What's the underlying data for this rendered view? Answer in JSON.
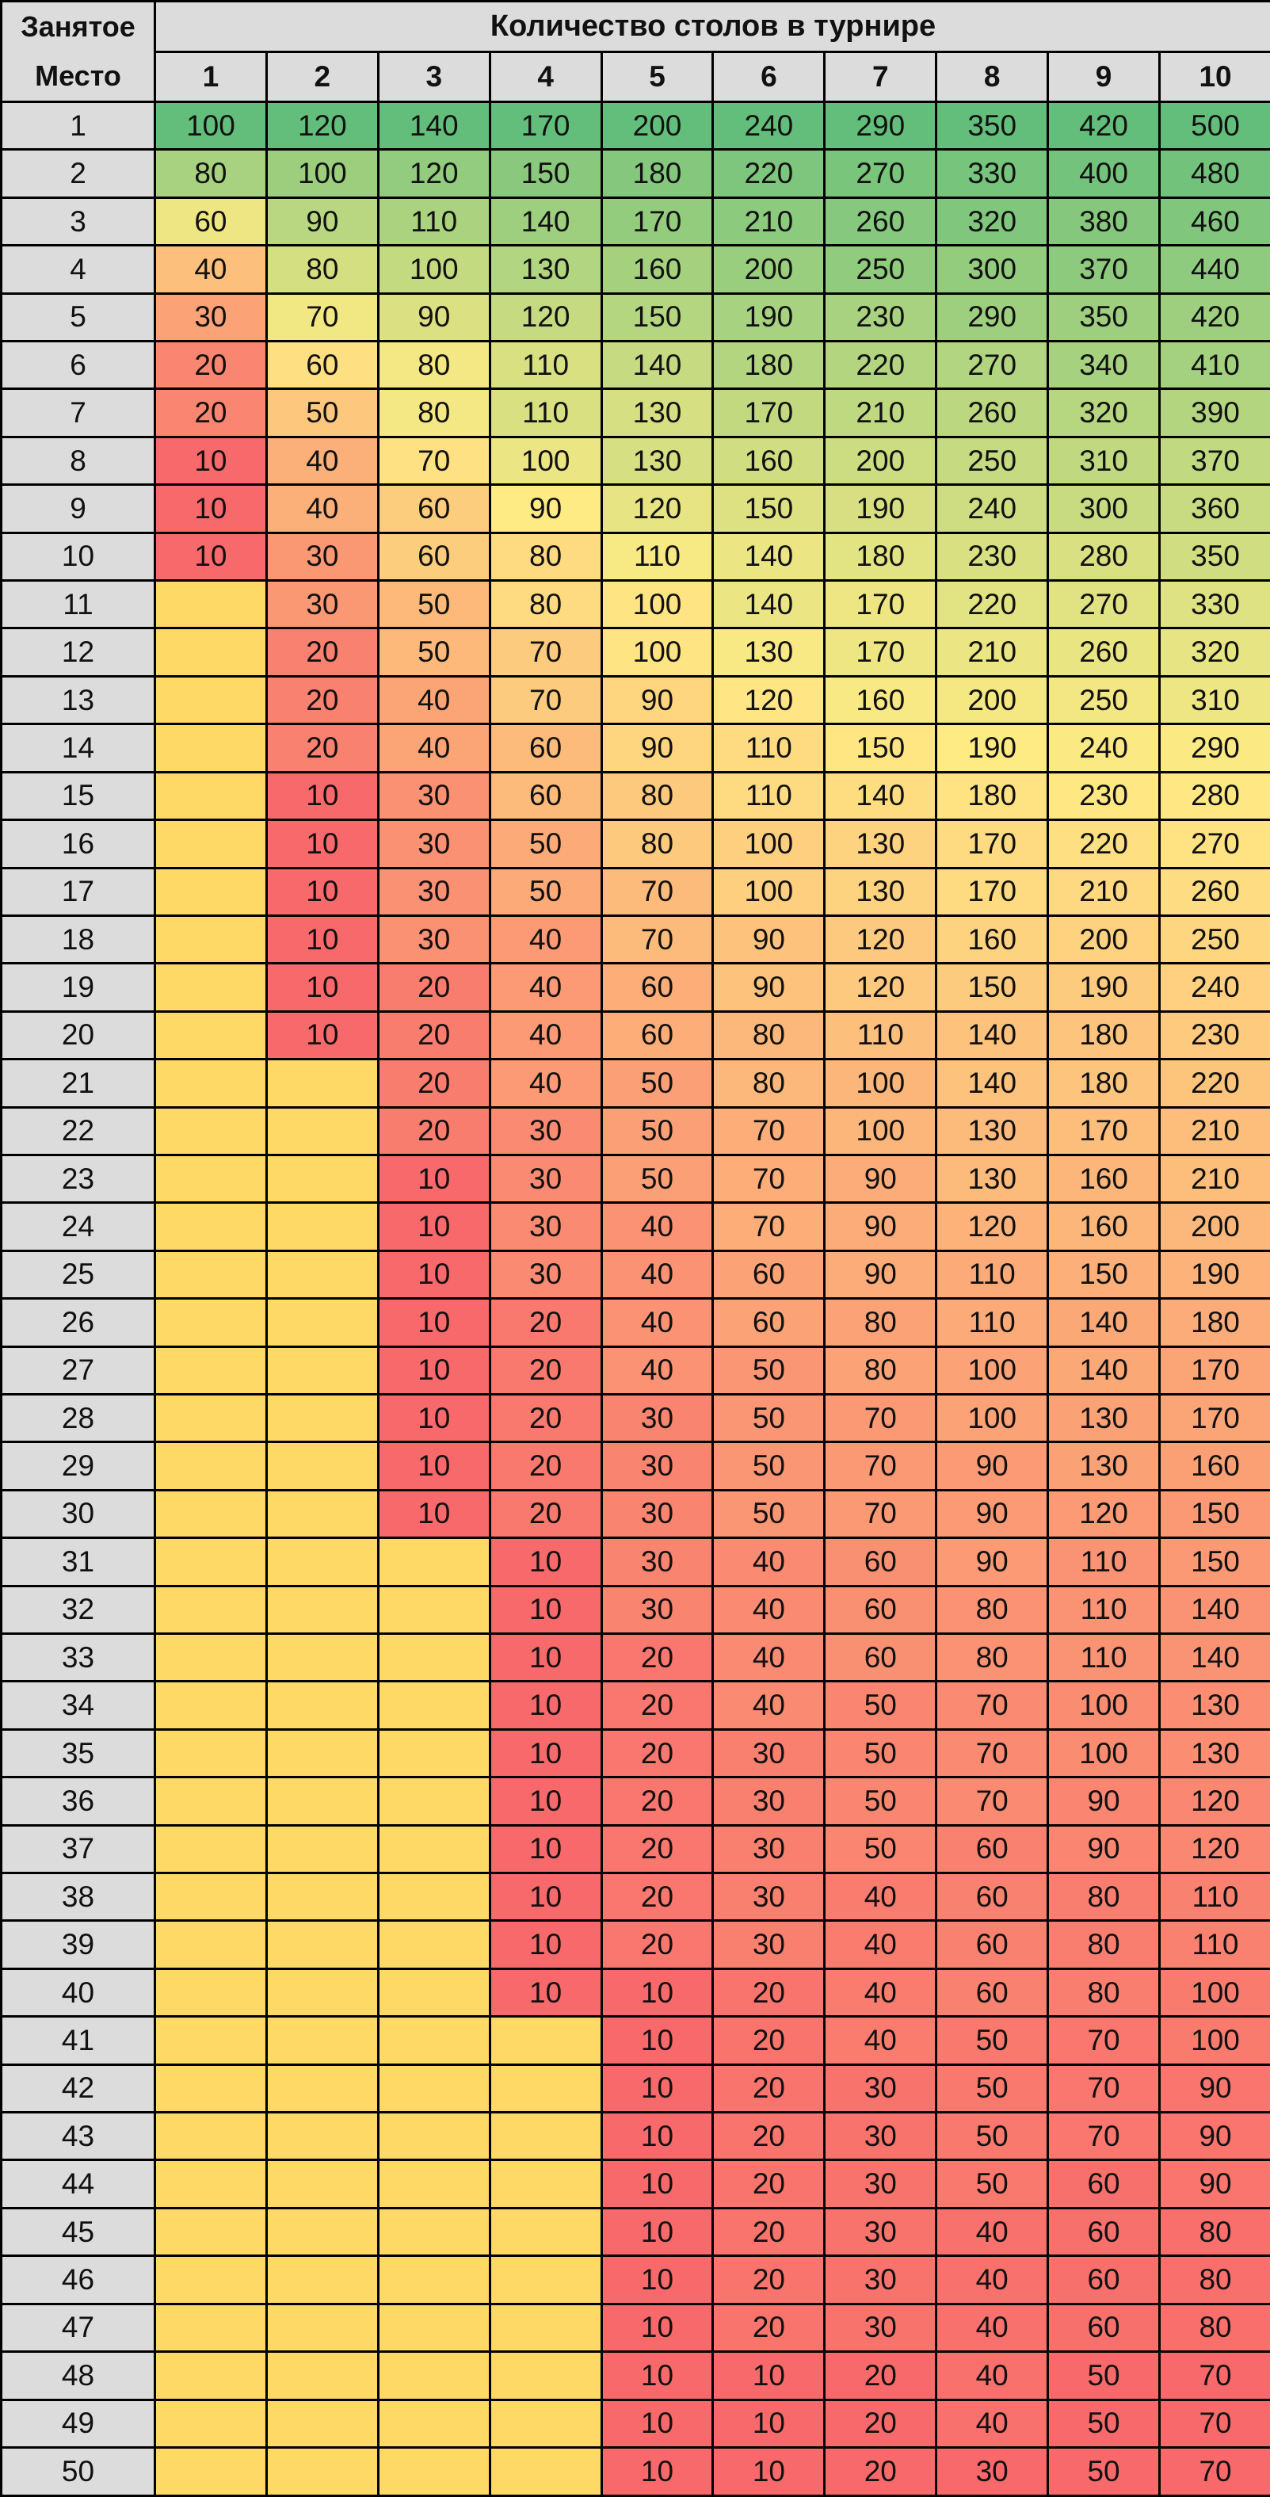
{
  "table": {
    "corner_label_line1": "Занятое",
    "corner_label_line2": "Место",
    "group_header": "Количество столов в турнире",
    "columns": [
      "1",
      "2",
      "3",
      "4",
      "5",
      "6",
      "7",
      "8",
      "9",
      "10"
    ],
    "rows": [
      {
        "place": "1",
        "values": [
          "100",
          "120",
          "140",
          "170",
          "200",
          "240",
          "290",
          "350",
          "420",
          "500"
        ]
      },
      {
        "place": "2",
        "values": [
          "80",
          "100",
          "120",
          "150",
          "180",
          "220",
          "270",
          "330",
          "400",
          "480"
        ]
      },
      {
        "place": "3",
        "values": [
          "60",
          "90",
          "110",
          "140",
          "170",
          "210",
          "260",
          "320",
          "380",
          "460"
        ]
      },
      {
        "place": "4",
        "values": [
          "40",
          "80",
          "100",
          "130",
          "160",
          "200",
          "250",
          "300",
          "370",
          "440"
        ]
      },
      {
        "place": "5",
        "values": [
          "30",
          "70",
          "90",
          "120",
          "150",
          "190",
          "230",
          "290",
          "350",
          "420"
        ]
      },
      {
        "place": "6",
        "values": [
          "20",
          "60",
          "80",
          "110",
          "140",
          "180",
          "220",
          "270",
          "340",
          "410"
        ]
      },
      {
        "place": "7",
        "values": [
          "20",
          "50",
          "80",
          "110",
          "130",
          "170",
          "210",
          "260",
          "320",
          "390"
        ]
      },
      {
        "place": "8",
        "values": [
          "10",
          "40",
          "70",
          "100",
          "130",
          "160",
          "200",
          "250",
          "310",
          "370"
        ]
      },
      {
        "place": "9",
        "values": [
          "10",
          "40",
          "60",
          "90",
          "120",
          "150",
          "190",
          "240",
          "300",
          "360"
        ]
      },
      {
        "place": "10",
        "values": [
          "10",
          "30",
          "60",
          "80",
          "110",
          "140",
          "180",
          "230",
          "280",
          "350"
        ]
      },
      {
        "place": "11",
        "values": [
          "",
          "30",
          "50",
          "80",
          "100",
          "140",
          "170",
          "220",
          "270",
          "330"
        ]
      },
      {
        "place": "12",
        "values": [
          "",
          "20",
          "50",
          "70",
          "100",
          "130",
          "170",
          "210",
          "260",
          "320"
        ]
      },
      {
        "place": "13",
        "values": [
          "",
          "20",
          "40",
          "70",
          "90",
          "120",
          "160",
          "200",
          "250",
          "310"
        ]
      },
      {
        "place": "14",
        "values": [
          "",
          "20",
          "40",
          "60",
          "90",
          "110",
          "150",
          "190",
          "240",
          "290"
        ]
      },
      {
        "place": "15",
        "values": [
          "",
          "10",
          "30",
          "60",
          "80",
          "110",
          "140",
          "180",
          "230",
          "280"
        ]
      },
      {
        "place": "16",
        "values": [
          "",
          "10",
          "30",
          "50",
          "80",
          "100",
          "130",
          "170",
          "220",
          "270"
        ]
      },
      {
        "place": "17",
        "values": [
          "",
          "10",
          "30",
          "50",
          "70",
          "100",
          "130",
          "170",
          "210",
          "260"
        ]
      },
      {
        "place": "18",
        "values": [
          "",
          "10",
          "30",
          "40",
          "70",
          "90",
          "120",
          "160",
          "200",
          "250"
        ]
      },
      {
        "place": "19",
        "values": [
          "",
          "10",
          "20",
          "40",
          "60",
          "90",
          "120",
          "150",
          "190",
          "240"
        ]
      },
      {
        "place": "20",
        "values": [
          "",
          "10",
          "20",
          "40",
          "60",
          "80",
          "110",
          "140",
          "180",
          "230"
        ]
      },
      {
        "place": "21",
        "values": [
          "",
          "",
          "20",
          "40",
          "50",
          "80",
          "100",
          "140",
          "180",
          "220"
        ]
      },
      {
        "place": "22",
        "values": [
          "",
          "",
          "20",
          "30",
          "50",
          "70",
          "100",
          "130",
          "170",
          "210"
        ]
      },
      {
        "place": "23",
        "values": [
          "",
          "",
          "10",
          "30",
          "50",
          "70",
          "90",
          "130",
          "160",
          "210"
        ]
      },
      {
        "place": "24",
        "values": [
          "",
          "",
          "10",
          "30",
          "40",
          "70",
          "90",
          "120",
          "160",
          "200"
        ]
      },
      {
        "place": "25",
        "values": [
          "",
          "",
          "10",
          "30",
          "40",
          "60",
          "90",
          "110",
          "150",
          "190"
        ]
      },
      {
        "place": "26",
        "values": [
          "",
          "",
          "10",
          "20",
          "40",
          "60",
          "80",
          "110",
          "140",
          "180"
        ]
      },
      {
        "place": "27",
        "values": [
          "",
          "",
          "10",
          "20",
          "40",
          "50",
          "80",
          "100",
          "140",
          "170"
        ]
      },
      {
        "place": "28",
        "values": [
          "",
          "",
          "10",
          "20",
          "30",
          "50",
          "70",
          "100",
          "130",
          "170"
        ]
      },
      {
        "place": "29",
        "values": [
          "",
          "",
          "10",
          "20",
          "30",
          "50",
          "70",
          "90",
          "130",
          "160"
        ]
      },
      {
        "place": "30",
        "values": [
          "",
          "",
          "10",
          "20",
          "30",
          "50",
          "70",
          "90",
          "120",
          "150"
        ]
      },
      {
        "place": "31",
        "values": [
          "",
          "",
          "",
          "10",
          "30",
          "40",
          "60",
          "90",
          "110",
          "150"
        ]
      },
      {
        "place": "32",
        "values": [
          "",
          "",
          "",
          "10",
          "30",
          "40",
          "60",
          "80",
          "110",
          "140"
        ]
      },
      {
        "place": "33",
        "values": [
          "",
          "",
          "",
          "10",
          "20",
          "40",
          "60",
          "80",
          "110",
          "140"
        ]
      },
      {
        "place": "34",
        "values": [
          "",
          "",
          "",
          "10",
          "20",
          "40",
          "50",
          "70",
          "100",
          "130"
        ]
      },
      {
        "place": "35",
        "values": [
          "",
          "",
          "",
          "10",
          "20",
          "30",
          "50",
          "70",
          "100",
          "130"
        ]
      },
      {
        "place": "36",
        "values": [
          "",
          "",
          "",
          "10",
          "20",
          "30",
          "50",
          "70",
          "90",
          "120"
        ]
      },
      {
        "place": "37",
        "values": [
          "",
          "",
          "",
          "10",
          "20",
          "30",
          "50",
          "60",
          "90",
          "120"
        ]
      },
      {
        "place": "38",
        "values": [
          "",
          "",
          "",
          "10",
          "20",
          "30",
          "40",
          "60",
          "80",
          "110"
        ]
      },
      {
        "place": "39",
        "values": [
          "",
          "",
          "",
          "10",
          "20",
          "30",
          "40",
          "60",
          "80",
          "110"
        ]
      },
      {
        "place": "40",
        "values": [
          "",
          "",
          "",
          "10",
          "10",
          "20",
          "40",
          "60",
          "80",
          "100"
        ]
      },
      {
        "place": "41",
        "values": [
          "",
          "",
          "",
          "",
          "10",
          "20",
          "40",
          "50",
          "70",
          "100"
        ]
      },
      {
        "place": "42",
        "values": [
          "",
          "",
          "",
          "",
          "10",
          "20",
          "30",
          "50",
          "70",
          "90"
        ]
      },
      {
        "place": "43",
        "values": [
          "",
          "",
          "",
          "",
          "10",
          "20",
          "30",
          "50",
          "70",
          "90"
        ]
      },
      {
        "place": "44",
        "values": [
          "",
          "",
          "",
          "",
          "10",
          "20",
          "30",
          "50",
          "60",
          "90"
        ]
      },
      {
        "place": "45",
        "values": [
          "",
          "",
          "",
          "",
          "10",
          "20",
          "30",
          "40",
          "60",
          "80"
        ]
      },
      {
        "place": "46",
        "values": [
          "",
          "",
          "",
          "",
          "10",
          "20",
          "30",
          "40",
          "60",
          "80"
        ]
      },
      {
        "place": "47",
        "values": [
          "",
          "",
          "",
          "",
          "10",
          "20",
          "30",
          "40",
          "60",
          "80"
        ]
      },
      {
        "place": "48",
        "values": [
          "",
          "",
          "",
          "",
          "10",
          "10",
          "20",
          "40",
          "50",
          "70"
        ]
      },
      {
        "place": "49",
        "values": [
          "",
          "",
          "",
          "",
          "10",
          "10",
          "20",
          "40",
          "50",
          "70"
        ]
      },
      {
        "place": "50",
        "values": [
          "",
          "",
          "",
          "",
          "10",
          "10",
          "20",
          "30",
          "50",
          "70"
        ]
      }
    ]
  },
  "colors": {
    "header_bg": "#dcdcdc",
    "empty_cell": "#ffd966",
    "scale_low": "#f8696b",
    "scale_mid": "#ffeb84",
    "scale_high": "#63be7b"
  }
}
